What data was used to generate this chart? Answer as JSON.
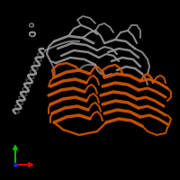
{
  "background_color": "#000000",
  "figure_size": [
    2.0,
    2.0
  ],
  "dpi": 100,
  "gray_color": "#999999",
  "orange_color": "#cc5500",
  "axis": {
    "ox": 0.085,
    "oy": 0.085,
    "x_color": "#dd0000",
    "y_color": "#00bb00",
    "z_color": "#2222cc"
  }
}
